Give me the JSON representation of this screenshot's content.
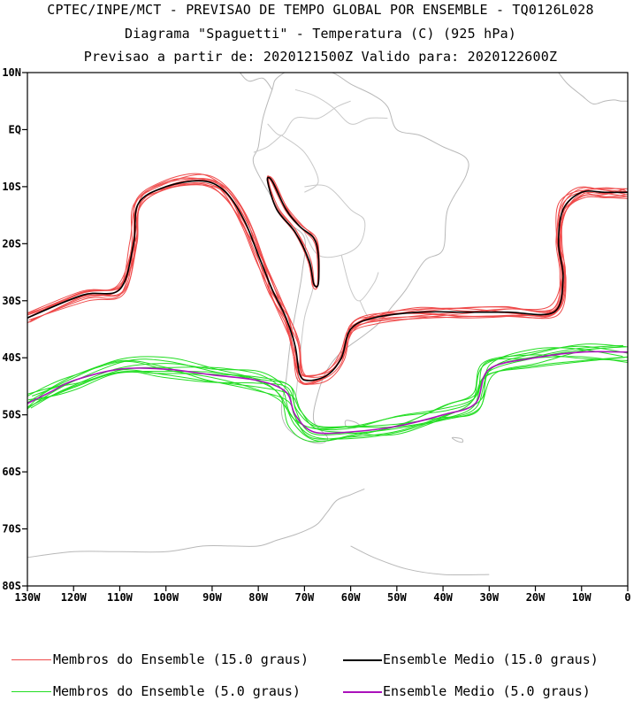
{
  "header": {
    "line1": "CPTEC/INPE/MCT - PREVISAO DE TEMPO GLOBAL POR ENSEMBLE - TQ0126L028",
    "line2": "Diagrama \"Spaguetti\" - Temperatura (C) (925 hPa)",
    "line3": "Previsao a partir de: 2020121500Z  Valido para: 2020122600Z"
  },
  "axes": {
    "lat_labels": [
      "10N",
      "EQ",
      "10S",
      "20S",
      "30S",
      "40S",
      "50S",
      "60S",
      "70S",
      "80S"
    ],
    "lon_labels": [
      "130W",
      "120W",
      "110W",
      "100W",
      "90W",
      "80W",
      "70W",
      "60W",
      "50W",
      "40W",
      "30W",
      "20W",
      "10W",
      "0"
    ]
  },
  "map_data": {
    "projection": "lat-lon",
    "lon_range": [
      -130,
      0
    ],
    "lat_range": [
      -80,
      10
    ],
    "contours": [
      {
        "name": "Membros do Ensemble (15.0 graus)",
        "color": "#ef4b4b",
        "members": 10,
        "path": [
          [
            -130,
            -33
          ],
          [
            -118,
            -29
          ],
          [
            -110,
            -28
          ],
          [
            -107,
            -20
          ],
          [
            -106,
            -13
          ],
          [
            -100,
            -10
          ],
          [
            -92,
            -9
          ],
          [
            -87,
            -11
          ],
          [
            -83,
            -16
          ],
          [
            -80,
            -22
          ],
          [
            -77,
            -28
          ],
          [
            -74,
            -33
          ],
          [
            -72,
            -38
          ],
          [
            -71,
            -43
          ],
          [
            -69,
            -44
          ],
          [
            -65,
            -43
          ],
          [
            -62,
            -40
          ],
          [
            -60,
            -35
          ],
          [
            -55,
            -33
          ],
          [
            -45,
            -32
          ],
          [
            -35,
            -32
          ],
          [
            -26,
            -32
          ],
          [
            -16,
            -32
          ],
          [
            -14,
            -26
          ],
          [
            -15,
            -20
          ],
          [
            -14,
            -14
          ],
          [
            -10,
            -11
          ],
          [
            -5,
            -11
          ],
          [
            0,
            -11
          ]
        ]
      },
      {
        "name": "Ensemble Medio (15.0 graus)",
        "color": "#000000"
      },
      {
        "name": "Membros do Ensemble (5.0 graus)",
        "color": "#22dd22",
        "members": 10,
        "path": [
          [
            -130,
            -48
          ],
          [
            -125,
            -46
          ],
          [
            -120,
            -44
          ],
          [
            -110,
            -42
          ],
          [
            -100,
            -42
          ],
          [
            -90,
            -43
          ],
          [
            -80,
            -44
          ],
          [
            -74,
            -46
          ],
          [
            -72,
            -50
          ],
          [
            -68,
            -53
          ],
          [
            -60,
            -53
          ],
          [
            -50,
            -52
          ],
          [
            -40,
            -50
          ],
          [
            -33,
            -48
          ],
          [
            -30,
            -42
          ],
          [
            -20,
            -40
          ],
          [
            -10,
            -39
          ],
          [
            0,
            -39
          ]
        ]
      },
      {
        "name": "Ensemble Medio (5.0 graus)",
        "color": "#aa11bb"
      }
    ],
    "andes_closed_contour": {
      "path": [
        [
          -77,
          -9
        ],
        [
          -74,
          -14
        ],
        [
          -71,
          -17
        ],
        [
          -68,
          -19
        ],
        [
          -67,
          -22
        ],
        [
          -67,
          -27
        ],
        [
          -68,
          -27
        ],
        [
          -69,
          -23
        ],
        [
          -72,
          -18
        ],
        [
          -76,
          -14
        ],
        [
          -78,
          -9
        ]
      ]
    }
  },
  "legend": {
    "items": [
      {
        "label": "Membros do Ensemble (15.0 graus)",
        "color": "#ef4b4b"
      },
      {
        "label": "Ensemble Medio (15.0 graus)",
        "color": "#000000"
      },
      {
        "label": "Membros do Ensemble (5.0 graus)",
        "color": "#22dd22"
      },
      {
        "label": "Ensemble Medio (5.0 graus)",
        "color": "#aa11bb"
      }
    ]
  }
}
